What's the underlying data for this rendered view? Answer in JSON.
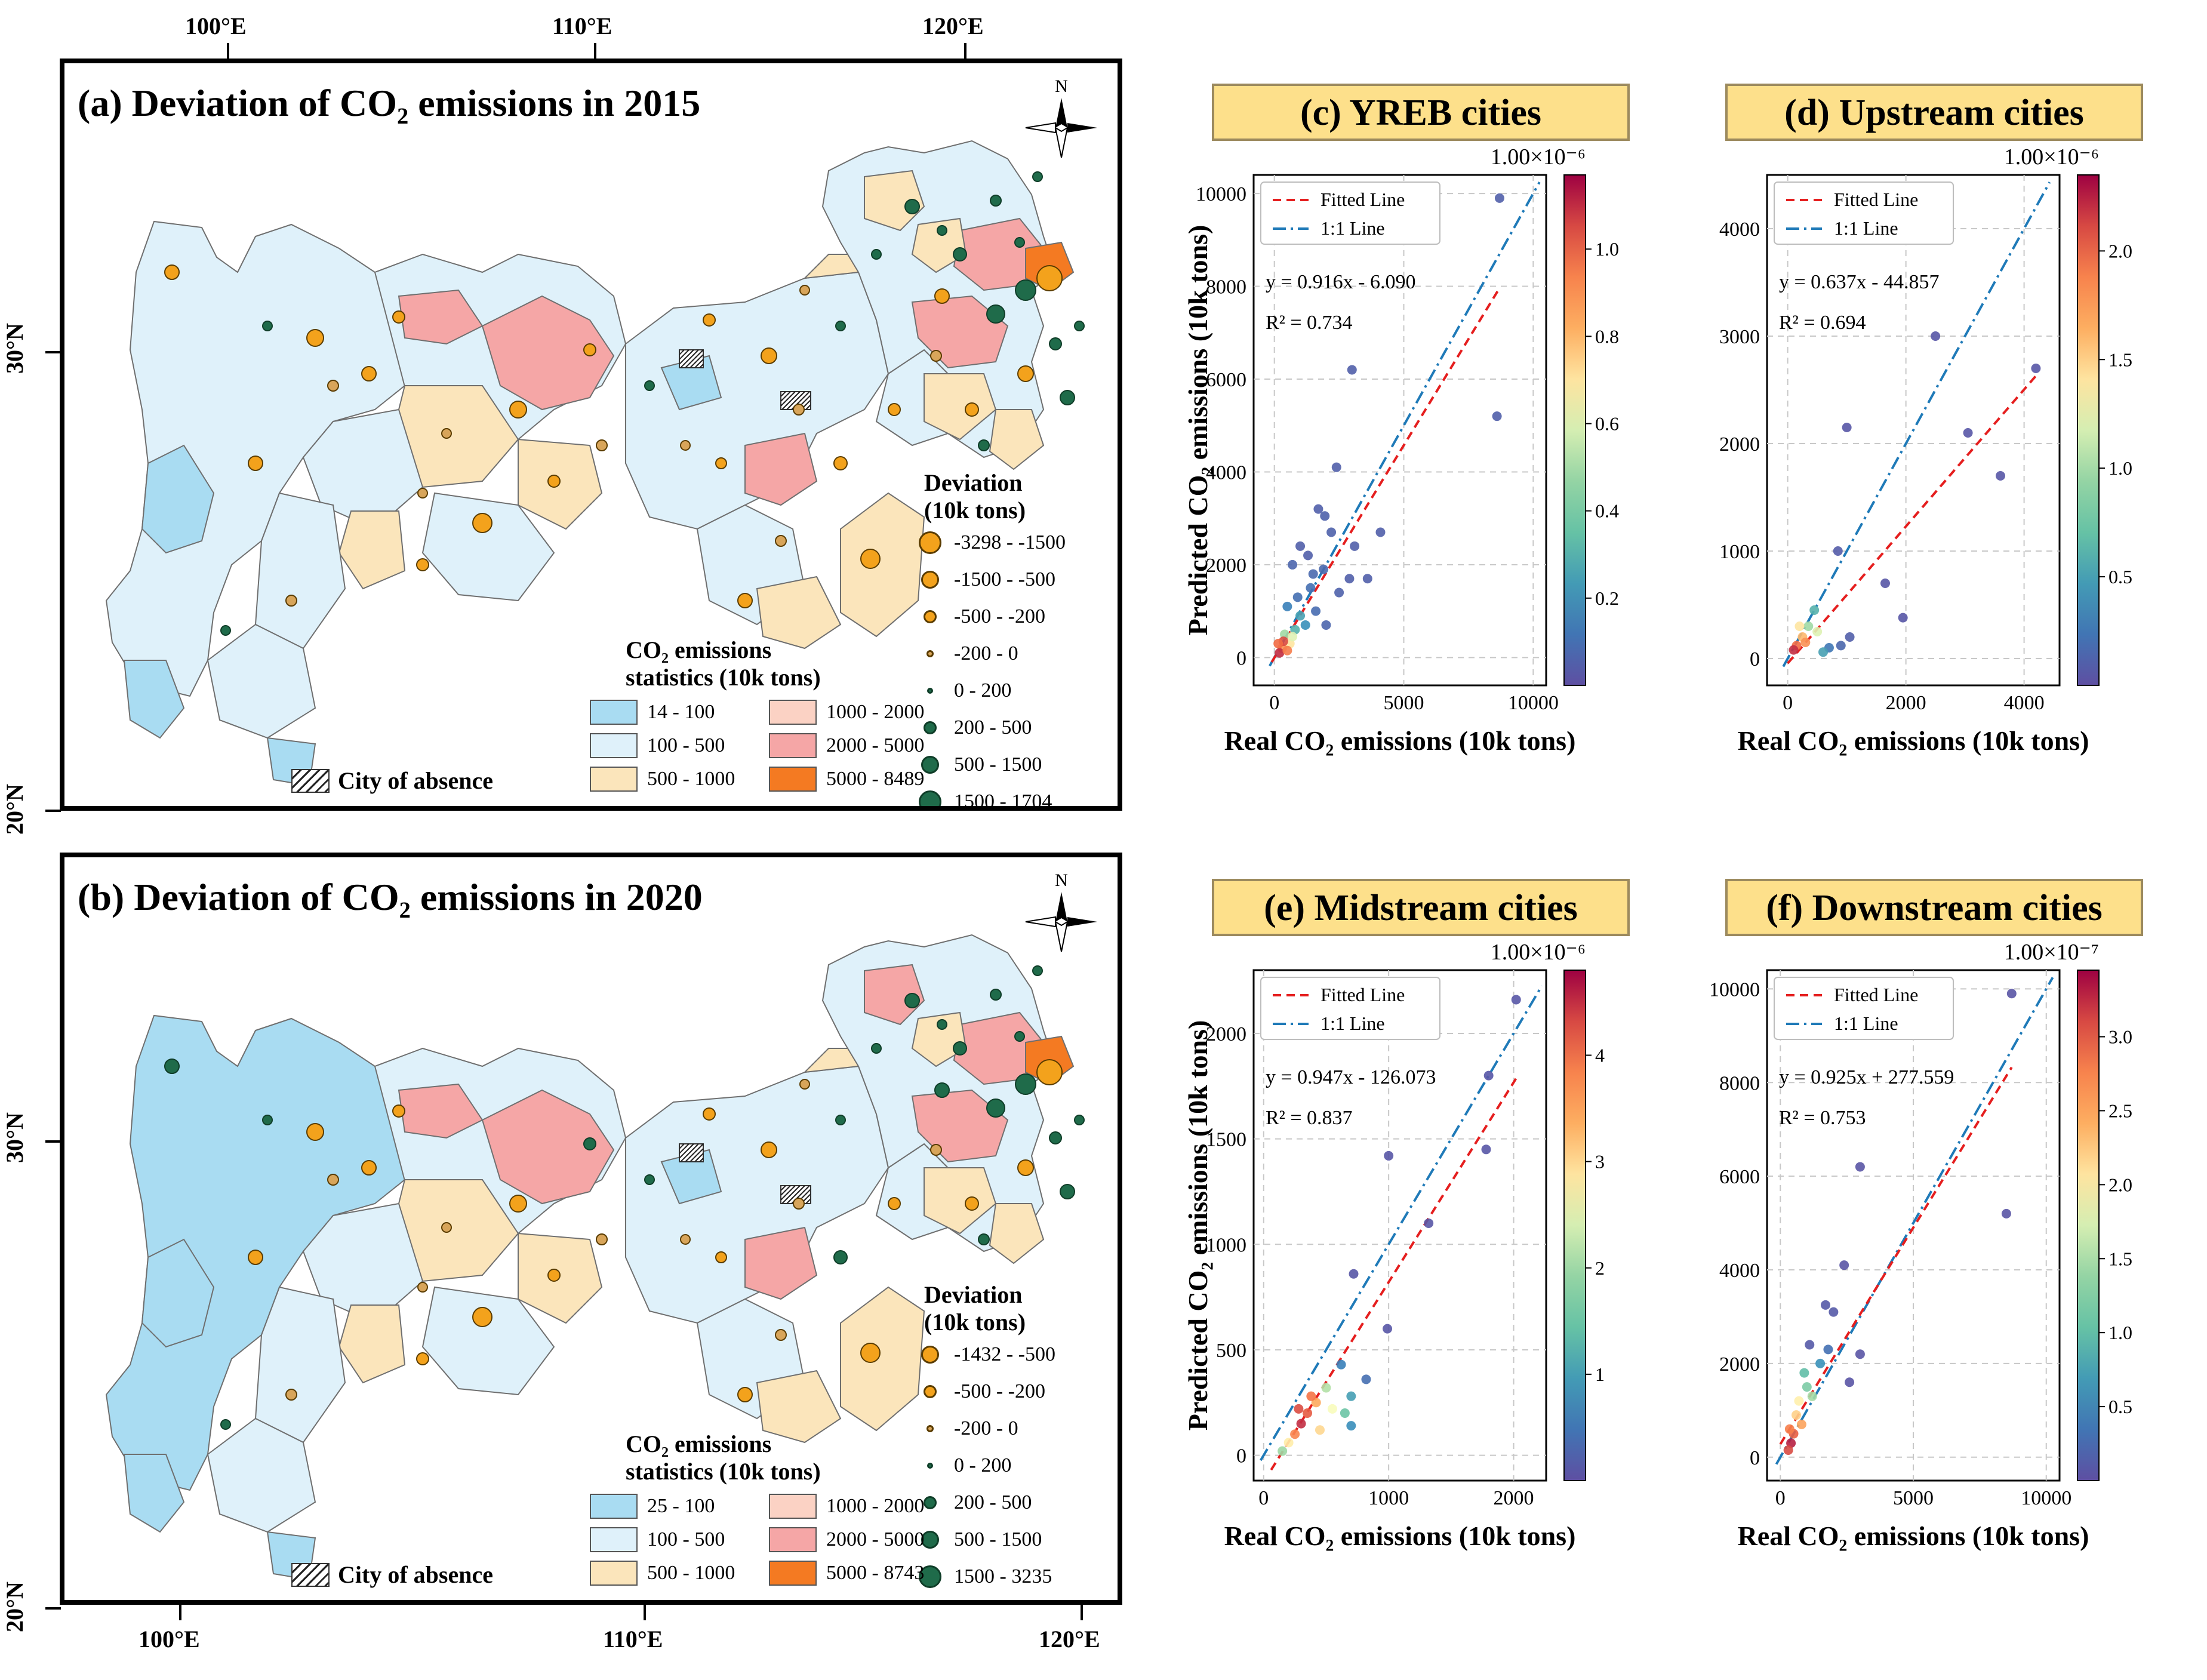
{
  "maps": [
    {
      "title": "(a) Deviation of CO₂ emissions in 2015",
      "deviation_title": "Deviation",
      "deviation_unit": "(10k tons)",
      "deviation_classes": [
        {
          "label": "-3298 - -1500",
          "color": "#f3a21c",
          "size": 38
        },
        {
          "label": "-1500 - -500",
          "color": "#f3a21c",
          "size": 30
        },
        {
          "label": "-500 - -200",
          "color": "#f3a21c",
          "size": 22
        },
        {
          "label": "-200 - 0",
          "color": "#d8a55a",
          "size": 12
        },
        {
          "label": "0 - 200",
          "color": "#1f6b4a",
          "size": 10
        },
        {
          "label": "200 - 500",
          "color": "#1f6b4a",
          "size": 22
        },
        {
          "label": "500 - 1500",
          "color": "#1f6b4a",
          "size": 30
        },
        {
          "label": "1500 - 1704",
          "color": "#1f6b4a",
          "size": 38
        }
      ],
      "stats_title": "CO₂ emissions",
      "stats_unit": "statistics (10k tons)",
      "stats_classes": [
        {
          "label": "14 - 100",
          "color": "#a9dcf2"
        },
        {
          "label": "1000 - 2000",
          "color": "#fbd2c4"
        },
        {
          "label": "100 - 500",
          "color": "#dff1fa"
        },
        {
          "label": "2000 - 5000",
          "color": "#f5a6a6"
        },
        {
          "label": "500 - 1000",
          "color": "#fbe5bb"
        },
        {
          "label": "5000 - 8489",
          "color": "#f47a22"
        }
      ],
      "absence_label": "City of absence",
      "lon_labels": [
        "100°E",
        "110°E",
        "120°E"
      ],
      "lat_labels": [
        "30°N",
        "20°N"
      ],
      "north": "N"
    },
    {
      "title": "(b) Deviation of CO₂ emissions in 2020",
      "deviation_title": "Deviation",
      "deviation_unit": "(10k tons)",
      "deviation_classes": [
        {
          "label": "-1432 - -500",
          "color": "#f3a21c",
          "size": 30
        },
        {
          "label": "-500 - -200",
          "color": "#f3a21c",
          "size": 22
        },
        {
          "label": "-200 - 0",
          "color": "#d8a55a",
          "size": 12
        },
        {
          "label": "0 - 200",
          "color": "#1f6b4a",
          "size": 10
        },
        {
          "label": "200 - 500",
          "color": "#1f6b4a",
          "size": 22
        },
        {
          "label": "500 - 1500",
          "color": "#1f6b4a",
          "size": 30
        },
        {
          "label": "1500 - 3235",
          "color": "#1f6b4a",
          "size": 38
        }
      ],
      "stats_title": "CO₂ emissions",
      "stats_unit": "statistics (10k tons)",
      "stats_classes": [
        {
          "label": "25 - 100",
          "color": "#a9dcf2"
        },
        {
          "label": "1000 - 2000",
          "color": "#fbd2c4"
        },
        {
          "label": "100 - 500",
          "color": "#dff1fa"
        },
        {
          "label": "2000 - 5000",
          "color": "#f5a6a6"
        },
        {
          "label": "500 - 1000",
          "color": "#fbe5bb"
        },
        {
          "label": "5000 - 8743",
          "color": "#f47a22"
        }
      ],
      "absence_label": "City of absence",
      "lon_labels": [
        "100°E",
        "110°E",
        "120°E"
      ],
      "lat_labels": [
        "30°N",
        "20°N"
      ],
      "north": "N"
    }
  ],
  "chart_data": [
    {
      "type": "scatter",
      "title": "(c) YREB cities",
      "xlabel": "Real CO₂ emissions (10k tons)",
      "ylabel": "Predicted CO₂ emissions (10k tons)",
      "xlim": [
        -800,
        10500
      ],
      "ylim": [
        -600,
        10400
      ],
      "xticks": [
        0,
        5000,
        10000
      ],
      "yticks": [
        0,
        2000,
        4000,
        6000,
        8000,
        10000
      ],
      "legend": [
        "Fitted Line",
        "1:1 Line"
      ],
      "equation": "y = 0.916x - 6.090",
      "r2_label": "R² = 0.734",
      "fit": {
        "slope": 0.916,
        "intercept": -6.09,
        "x_range": [
          -100,
          8700
        ]
      },
      "colorbar": {
        "exponent": "1.00×10⁻⁶",
        "ticks": [
          "0.2",
          "0.4",
          "0.6",
          "0.8",
          "1.0"
        ],
        "range": [
          0,
          1.17
        ],
        "tick_values": [
          0.2,
          0.4,
          0.6,
          0.8,
          1.0
        ]
      },
      "points": [
        {
          "x": 8700,
          "y": 9900,
          "c": 0.05
        },
        {
          "x": 3000,
          "y": 6200,
          "c": 0.05
        },
        {
          "x": 8600,
          "y": 5200,
          "c": 0.05
        },
        {
          "x": 2400,
          "y": 4100,
          "c": 0.05
        },
        {
          "x": 1700,
          "y": 3200,
          "c": 0.05
        },
        {
          "x": 1950,
          "y": 3050,
          "c": 0.06
        },
        {
          "x": 3100,
          "y": 2400,
          "c": 0.05
        },
        {
          "x": 4100,
          "y": 2700,
          "c": 0.05
        },
        {
          "x": 3600,
          "y": 1700,
          "c": 0.05
        },
        {
          "x": 2200,
          "y": 2700,
          "c": 0.06
        },
        {
          "x": 1300,
          "y": 2200,
          "c": 0.05
        },
        {
          "x": 1000,
          "y": 2400,
          "c": 0.05
        },
        {
          "x": 700,
          "y": 2000,
          "c": 0.07
        },
        {
          "x": 1500,
          "y": 1800,
          "c": 0.08
        },
        {
          "x": 2500,
          "y": 1400,
          "c": 0.06
        },
        {
          "x": 2000,
          "y": 700,
          "c": 0.07
        },
        {
          "x": 1600,
          "y": 1000,
          "c": 0.09
        },
        {
          "x": 900,
          "y": 1300,
          "c": 0.1
        },
        {
          "x": 500,
          "y": 1100,
          "c": 0.15
        },
        {
          "x": 1200,
          "y": 700,
          "c": 0.2
        },
        {
          "x": 800,
          "y": 600,
          "c": 0.3
        },
        {
          "x": 400,
          "y": 500,
          "c": 0.5
        },
        {
          "x": 600,
          "y": 300,
          "c": 0.7
        },
        {
          "x": 300,
          "y": 200,
          "c": 0.9
        },
        {
          "x": 200,
          "y": 100,
          "c": 1.1
        },
        {
          "x": 350,
          "y": 350,
          "c": 1.05
        },
        {
          "x": 500,
          "y": 150,
          "c": 0.95
        },
        {
          "x": 150,
          "y": 300,
          "c": 1.0
        },
        {
          "x": 700,
          "y": 450,
          "c": 0.6
        },
        {
          "x": 1000,
          "y": 900,
          "c": 0.25
        },
        {
          "x": 1900,
          "y": 1900,
          "c": 0.08
        },
        {
          "x": 1400,
          "y": 1500,
          "c": 0.1
        },
        {
          "x": 2900,
          "y": 1700,
          "c": 0.05
        }
      ]
    },
    {
      "type": "scatter",
      "title": "(d) Upstream cities",
      "xlabel": "Real CO₂ emissions (10k tons)",
      "ylabel": "",
      "xlim": [
        -350,
        4600
      ],
      "ylim": [
        -250,
        4500
      ],
      "xticks": [
        0,
        2000,
        4000
      ],
      "yticks": [
        0,
        1000,
        2000,
        3000,
        4000
      ],
      "legend": [
        "Fitted Line",
        "1:1 Line"
      ],
      "equation": "y = 0.637x - 44.857",
      "r2_label": "R² = 0.694",
      "fit": {
        "slope": 0.637,
        "intercept": -44.857,
        "x_range": [
          0,
          4200
        ]
      },
      "colorbar": {
        "exponent": "1.00×10⁻⁶",
        "ticks": [
          "0.5",
          "1.0",
          "1.5",
          "2.0"
        ],
        "range": [
          0,
          2.35
        ],
        "tick_values": [
          0.5,
          1.0,
          1.5,
          2.0
        ]
      },
      "points": [
        {
          "x": 2500,
          "y": 3000,
          "c": 0.05
        },
        {
          "x": 4200,
          "y": 2700,
          "c": 0.05
        },
        {
          "x": 1000,
          "y": 2150,
          "c": 0.05
        },
        {
          "x": 3050,
          "y": 2100,
          "c": 0.05
        },
        {
          "x": 3600,
          "y": 1700,
          "c": 0.05
        },
        {
          "x": 1650,
          "y": 700,
          "c": 0.05
        },
        {
          "x": 850,
          "y": 1000,
          "c": 0.08
        },
        {
          "x": 1950,
          "y": 380,
          "c": 0.05
        },
        {
          "x": 1050,
          "y": 200,
          "c": 0.1
        },
        {
          "x": 900,
          "y": 120,
          "c": 0.15
        },
        {
          "x": 700,
          "y": 100,
          "c": 0.25
        },
        {
          "x": 450,
          "y": 450,
          "c": 0.6
        },
        {
          "x": 350,
          "y": 300,
          "c": 1.0
        },
        {
          "x": 250,
          "y": 200,
          "c": 1.6
        },
        {
          "x": 150,
          "y": 120,
          "c": 2.0
        },
        {
          "x": 100,
          "y": 80,
          "c": 2.2
        },
        {
          "x": 300,
          "y": 150,
          "c": 1.8
        },
        {
          "x": 500,
          "y": 250,
          "c": 1.2
        },
        {
          "x": 200,
          "y": 300,
          "c": 1.4
        },
        {
          "x": 600,
          "y": 60,
          "c": 0.5
        }
      ]
    },
    {
      "type": "scatter",
      "title": "(e) Midstream cities",
      "xlabel": "Real CO₂ emissions (10k tons)",
      "ylabel": "Predicted CO₂ emissions (10k tons)",
      "xlim": [
        -80,
        2260
      ],
      "ylim": [
        -120,
        2300
      ],
      "xticks": [
        0,
        1000,
        2000
      ],
      "yticks": [
        0,
        500,
        1000,
        1500,
        2000
      ],
      "legend": [
        "Fitted Line",
        "1:1 Line"
      ],
      "equation": "y = 0.947x - 126.073",
      "r2_label": "R² = 0.837",
      "fit": {
        "slope": 0.947,
        "intercept": -126.073,
        "x_range": [
          60,
          2020
        ]
      },
      "colorbar": {
        "exponent": "1.00×10⁻⁶",
        "ticks": [
          "1",
          "2",
          "3",
          "4"
        ],
        "range": [
          0,
          4.8
        ],
        "tick_values": [
          1,
          2,
          3,
          4
        ]
      },
      "points": [
        {
          "x": 2020,
          "y": 2160,
          "c": 0.1
        },
        {
          "x": 1800,
          "y": 1800,
          "c": 0.1
        },
        {
          "x": 1780,
          "y": 1450,
          "c": 0.1
        },
        {
          "x": 1000,
          "y": 1420,
          "c": 0.1
        },
        {
          "x": 1320,
          "y": 1100,
          "c": 0.1
        },
        {
          "x": 720,
          "y": 860,
          "c": 0.1
        },
        {
          "x": 990,
          "y": 600,
          "c": 0.1
        },
        {
          "x": 620,
          "y": 430,
          "c": 0.6
        },
        {
          "x": 820,
          "y": 360,
          "c": 0.4
        },
        {
          "x": 700,
          "y": 280,
          "c": 1.0
        },
        {
          "x": 650,
          "y": 200,
          "c": 1.5
        },
        {
          "x": 700,
          "y": 140,
          "c": 0.8
        },
        {
          "x": 500,
          "y": 320,
          "c": 2.2
        },
        {
          "x": 420,
          "y": 250,
          "c": 3.4
        },
        {
          "x": 350,
          "y": 200,
          "c": 4.2
        },
        {
          "x": 300,
          "y": 150,
          "c": 4.5
        },
        {
          "x": 250,
          "y": 100,
          "c": 3.8
        },
        {
          "x": 200,
          "y": 60,
          "c": 2.8
        },
        {
          "x": 150,
          "y": 20,
          "c": 2.0
        },
        {
          "x": 450,
          "y": 120,
          "c": 3.0
        },
        {
          "x": 550,
          "y": 220,
          "c": 2.6
        },
        {
          "x": 380,
          "y": 280,
          "c": 4.0
        },
        {
          "x": 280,
          "y": 220,
          "c": 4.3
        }
      ]
    },
    {
      "type": "scatter",
      "title": "(f) Downstream cities",
      "xlabel": "Real CO₂ emissions (10k tons)",
      "ylabel": "",
      "xlim": [
        -500,
        10500
      ],
      "ylim": [
        -500,
        10400
      ],
      "xticks": [
        0,
        5000,
        10000
      ],
      "yticks": [
        0,
        2000,
        4000,
        6000,
        8000,
        10000
      ],
      "legend": [
        "Fitted Line",
        "1:1 Line"
      ],
      "equation": "y = 0.925x + 277.559",
      "r2_label": "R² = 0.753",
      "fit": {
        "slope": 0.925,
        "intercept": 277.559,
        "x_range": [
          0,
          8700
        ]
      },
      "colorbar": {
        "exponent": "1.00×10⁻⁷",
        "ticks": [
          "0.5",
          "1.0",
          "1.5",
          "2.0",
          "2.5",
          "3.0"
        ],
        "range": [
          0,
          3.45
        ],
        "tick_values": [
          0.5,
          1.0,
          1.5,
          2.0,
          2.5,
          3.0
        ]
      },
      "points": [
        {
          "x": 8700,
          "y": 9900,
          "c": 0.05
        },
        {
          "x": 3000,
          "y": 6200,
          "c": 0.05
        },
        {
          "x": 8500,
          "y": 5200,
          "c": 0.05
        },
        {
          "x": 2400,
          "y": 4100,
          "c": 0.05
        },
        {
          "x": 1700,
          "y": 3250,
          "c": 0.1
        },
        {
          "x": 2000,
          "y": 3100,
          "c": 0.1
        },
        {
          "x": 3000,
          "y": 2200,
          "c": 0.05
        },
        {
          "x": 2600,
          "y": 1600,
          "c": 0.05
        },
        {
          "x": 1100,
          "y": 2400,
          "c": 0.1
        },
        {
          "x": 1500,
          "y": 2000,
          "c": 0.6
        },
        {
          "x": 900,
          "y": 1800,
          "c": 1.0
        },
        {
          "x": 1200,
          "y": 1300,
          "c": 1.5
        },
        {
          "x": 700,
          "y": 1200,
          "c": 2.0
        },
        {
          "x": 800,
          "y": 700,
          "c": 2.5
        },
        {
          "x": 500,
          "y": 500,
          "c": 3.0
        },
        {
          "x": 400,
          "y": 300,
          "c": 3.3
        },
        {
          "x": 300,
          "y": 150,
          "c": 3.1
        },
        {
          "x": 600,
          "y": 900,
          "c": 2.2
        },
        {
          "x": 1000,
          "y": 1500,
          "c": 1.2
        },
        {
          "x": 1800,
          "y": 2300,
          "c": 0.3
        },
        {
          "x": 350,
          "y": 600,
          "c": 2.8
        }
      ]
    }
  ]
}
